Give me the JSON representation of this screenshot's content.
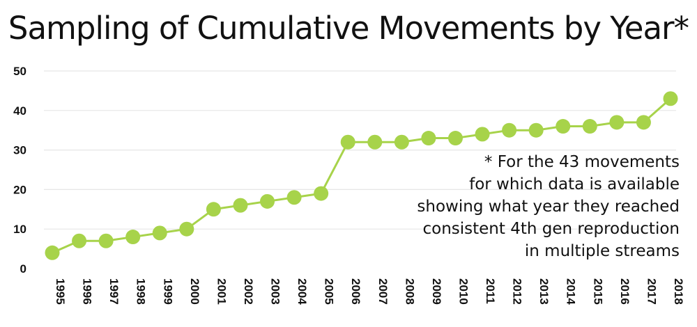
{
  "chart_data": {
    "type": "line",
    "title": "Sampling of Cumulative Movements by Year*",
    "x": [
      "1995",
      "1996",
      "1997",
      "1998",
      "1999",
      "2000",
      "2001",
      "2002",
      "2003",
      "2004",
      "2005",
      "2006",
      "2007",
      "2008",
      "2009",
      "2010",
      "2011",
      "2012",
      "2013",
      "2014",
      "2015",
      "2016",
      "2017",
      "2018"
    ],
    "series": [
      {
        "values": [
          4,
          7,
          7,
          8,
          9,
          10,
          15,
          16,
          17,
          18,
          19,
          32,
          32,
          32,
          33,
          33,
          34,
          35,
          35,
          36,
          36,
          37,
          37,
          43
        ]
      }
    ],
    "ylim": [
      0,
      50
    ],
    "yticks": [
      0,
      10,
      20,
      30,
      40,
      50
    ],
    "grid": true,
    "color": "#a7d34a",
    "annotation": [
      "* For the 43 movements",
      "for which data is available",
      "showing what year they reached",
      "consistent 4th gen reproduction",
      "in multiple streams"
    ]
  }
}
